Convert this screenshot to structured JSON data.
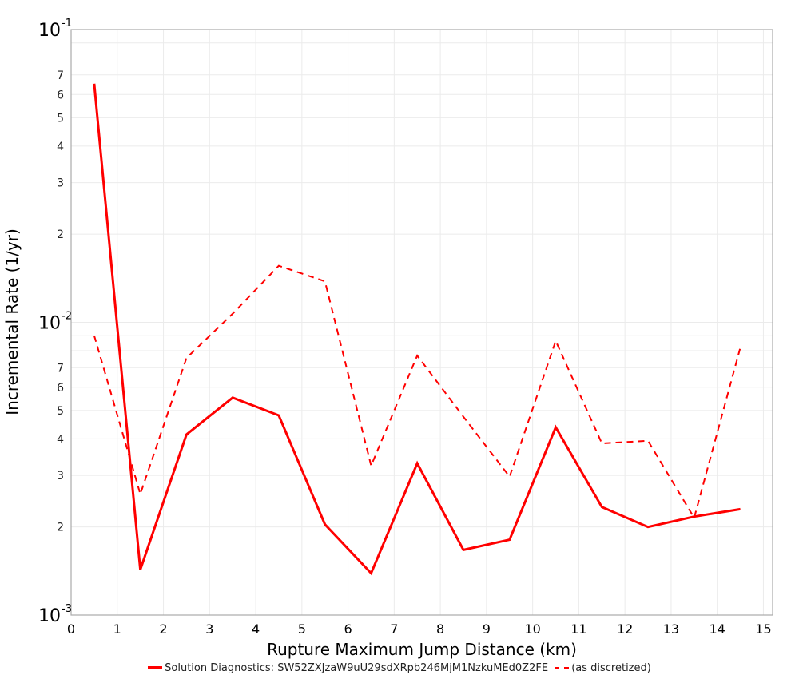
{
  "chart_data": {
    "type": "line",
    "title": "",
    "xlabel": "Rupture Maximum Jump Distance (km)",
    "ylabel": "Incremental Rate (1/yr)",
    "xlim": [
      0,
      15.2
    ],
    "ylim": [
      0.001,
      0.1
    ],
    "yscale": "log",
    "grid": true,
    "legend_position": "bottom",
    "x": [
      0.5,
      1.5,
      2.5,
      3.5,
      4.5,
      5.5,
      6.5,
      7.5,
      8.5,
      9.5,
      10.5,
      11.5,
      12.5,
      13.5,
      14.5
    ],
    "series": [
      {
        "name": "Solution Diagnostics: SW52ZXJzaW9uU29sdXRpb246MjM1NzkuMEd0Z2FE",
        "style": "solid",
        "color": "#ff0000",
        "values": [
          0.0653,
          0.00143,
          0.00414,
          0.00553,
          0.00481,
          0.00204,
          0.00139,
          0.0033,
          0.00167,
          0.00181,
          0.00438,
          0.00234,
          0.002,
          0.00217,
          0.0023
        ]
      },
      {
        "name": "(as discretized)",
        "style": "dashed",
        "color": "#ff0000",
        "values": [
          0.00901,
          0.00259,
          0.00755,
          0.0107,
          0.0156,
          0.0138,
          0.00324,
          0.0077,
          0.00476,
          0.00297,
          0.00864,
          0.00386,
          0.00394,
          0.00215,
          0.0082
        ]
      }
    ],
    "xticks": [
      "0",
      "1",
      "2",
      "3",
      "4",
      "5",
      "6",
      "7",
      "8",
      "9",
      "10",
      "11",
      "12",
      "13",
      "14",
      "15"
    ],
    "yticks_major": [
      {
        "value": 0.1,
        "base": "10",
        "exp": "-1"
      },
      {
        "value": 0.01,
        "base": "10",
        "exp": "-2"
      },
      {
        "value": 0.001,
        "base": "10",
        "exp": "-3"
      }
    ],
    "yticks_minor_labels": [
      "2",
      "3",
      "4",
      "5",
      "6",
      "7"
    ]
  },
  "legend": {
    "series1_label": "Solution Diagnostics: SW52ZXJzaW9uU29sdXRpb246MjM1NzkuMEd0Z2FE",
    "series2_label": "(as discretized)"
  },
  "axes": {
    "xlabel": "Rupture Maximum Jump Distance (km)",
    "ylabel": "Incremental Rate (1/yr)"
  }
}
